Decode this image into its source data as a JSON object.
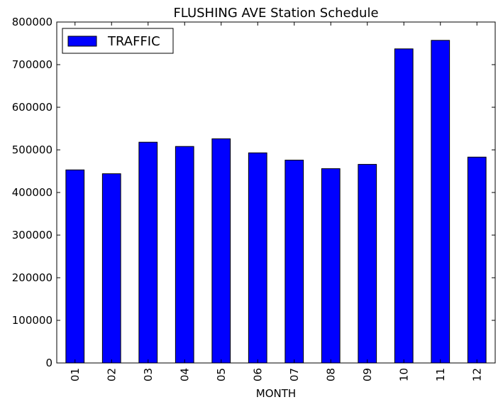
{
  "chart_data": {
    "type": "bar",
    "title": "FLUSHING AVE Station Schedule",
    "xlabel": "MONTH",
    "ylabel": "",
    "categories": [
      "01",
      "02",
      "03",
      "04",
      "05",
      "06",
      "07",
      "08",
      "09",
      "10",
      "11",
      "12"
    ],
    "series": [
      {
        "name": "TRAFFIC",
        "color": "#0000ff",
        "values": [
          453000,
          444000,
          518000,
          508000,
          526000,
          493000,
          476000,
          456000,
          466000,
          737000,
          757000,
          483000
        ]
      }
    ],
    "ylim": [
      0,
      800000
    ],
    "yticks": [
      "0",
      "100000",
      "200000",
      "300000",
      "400000",
      "500000",
      "600000",
      "700000",
      "800000"
    ],
    "legend_position": "top-left",
    "grid": false
  }
}
